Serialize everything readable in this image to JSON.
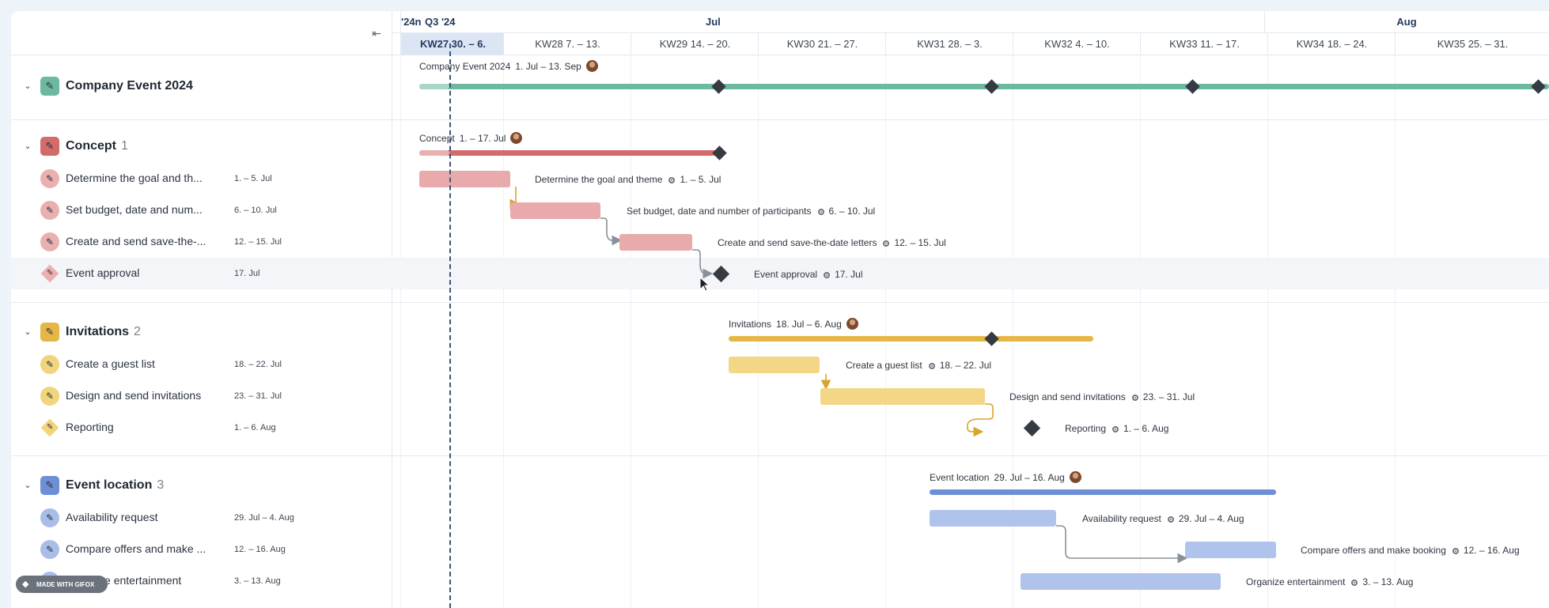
{
  "colors": {
    "company": "#6db8a0",
    "concept": "#d46b6b",
    "concept_light": "#e8aaaa",
    "concept_icon": "#eab0b0",
    "invitations": "#e5b746",
    "invitations_light": "#f3d686",
    "invitations_icon": "#f1d47c",
    "location": "#6d8fd5",
    "location_light": "#afc3ec",
    "location_icon": "#a8bde8",
    "milestone": "#363a42",
    "today_line": "#3a5279"
  },
  "header": {
    "top_labels": [
      {
        "text": "'24n"
      },
      {
        "text": "Q3 '24"
      },
      {
        "text": "Jul"
      },
      {
        "text": "Aug"
      }
    ],
    "weeks": [
      "KW27 30. – 6.",
      "KW28 7. – 13.",
      "KW29 14. – 20.",
      "KW30 21. – 27.",
      "KW31 28. – 3.",
      "KW32 4. – 10.",
      "KW33 11. – 17.",
      "KW34 18. – 24.",
      "KW35 25. – 31."
    ],
    "collapse_icon": "collapse-left-icon"
  },
  "project": {
    "name": "Company Event 2024",
    "range": "1. Jul – 13. Sep"
  },
  "groups": [
    {
      "name": "Concept",
      "count": "1",
      "range": "1. – 17. Jul",
      "tasks": [
        {
          "name": "Determine the goal and th...",
          "full": "Determine the goal and theme",
          "date": "1. – 5. Jul"
        },
        {
          "name": "Set budget, date and num...",
          "full": "Set budget, date and number of participants",
          "date": "6. – 10. Jul"
        },
        {
          "name": "Create and send save-the-...",
          "full": "Create and send save-the-date letters",
          "date": "12. – 15. Jul"
        },
        {
          "name": "Event approval",
          "full": "Event approval",
          "date": "17. Jul"
        }
      ]
    },
    {
      "name": "Invitations",
      "count": "2",
      "range": "18. Jul – 6. Aug",
      "tasks": [
        {
          "name": "Create a guest list",
          "full": "Create a guest list",
          "date": "18. – 22. Jul"
        },
        {
          "name": "Design and send invitations",
          "full": "Design and send invitations",
          "date": "23. – 31. Jul"
        },
        {
          "name": "Reporting",
          "full": "Reporting",
          "date": "1. – 6. Aug"
        }
      ]
    },
    {
      "name": "Event location",
      "count": "3",
      "range": "29. Jul – 16. Aug",
      "tasks": [
        {
          "name": "Availability request",
          "full": "Availability request",
          "date": "29. Jul – 4. Aug"
        },
        {
          "name": "Compare offers and make ...",
          "full": "Compare offers and make booking",
          "date": "12. – 16. Aug"
        },
        {
          "name": "Organize entertainment",
          "full": "Organize entertainment",
          "date": "3. – 13. Aug"
        }
      ]
    }
  ],
  "watermark": "MADE WITH GIFOX"
}
